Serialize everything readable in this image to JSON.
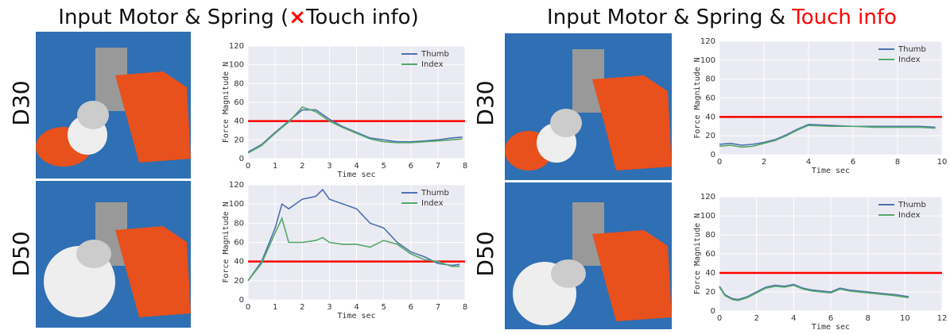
{
  "header": {
    "left_title": {
      "text": "Input Motor & Spring (",
      "mark": "×",
      "tail": "Touch info)"
    },
    "right_title": {
      "text": "Input Motor & Spring & ",
      "highlight": "Touch info"
    },
    "row_labels": [
      "D30",
      "D50",
      "D30",
      "D50"
    ]
  },
  "chart_data": [
    {
      "type": "line",
      "x_label": "Time sec",
      "y_label": "Force Magnitude N",
      "x": [
        0,
        0.5,
        1,
        1.5,
        2,
        2.5,
        3,
        3.5,
        4,
        4.5,
        5,
        5.5,
        6,
        6.5,
        7,
        7.5,
        7.9
      ],
      "series": [
        {
          "name": "Thumb",
          "color": "#4c72b0",
          "values": [
            7,
            15,
            28,
            40,
            52,
            52,
            42,
            34,
            28,
            22,
            20,
            18,
            18,
            19,
            20,
            22,
            23
          ]
        },
        {
          "name": "Index",
          "color": "#55a868",
          "values": [
            6,
            14,
            27,
            39,
            55,
            50,
            40,
            33,
            27,
            21,
            18,
            17,
            17,
            18,
            19,
            20,
            21
          ]
        }
      ],
      "threshold": {
        "value": 40,
        "color": "#ff0000"
      },
      "xlim": [
        0,
        8
      ],
      "xticks": [
        0,
        1,
        2,
        3,
        4,
        5,
        6,
        7,
        8
      ],
      "ylim": [
        0,
        120
      ],
      "yticks": [
        0,
        20,
        40,
        60,
        80,
        100,
        120
      ],
      "grid": true,
      "legend": "upper-right"
    },
    {
      "type": "line",
      "x_label": "Time sec",
      "y_label": "Force Magnitude N",
      "x": [
        0,
        0.5,
        1,
        1.25,
        1.5,
        2,
        2.5,
        2.75,
        3,
        3.5,
        4,
        4.5,
        5,
        5.5,
        6,
        6.5,
        7,
        7.5,
        7.8
      ],
      "series": [
        {
          "name": "Thumb",
          "color": "#4c72b0",
          "values": [
            20,
            40,
            75,
            100,
            95,
            105,
            108,
            115,
            105,
            100,
            95,
            80,
            75,
            60,
            50,
            45,
            38,
            36,
            37
          ]
        },
        {
          "name": "Index",
          "color": "#55a868",
          "values": [
            20,
            38,
            70,
            85,
            60,
            60,
            62,
            65,
            60,
            58,
            58,
            55,
            62,
            58,
            48,
            42,
            40,
            35,
            35
          ]
        }
      ],
      "threshold": {
        "value": 40,
        "color": "#ff0000"
      },
      "xlim": [
        0,
        8
      ],
      "xticks": [
        0,
        1,
        2,
        3,
        4,
        5,
        6,
        7,
        8
      ],
      "ylim": [
        0,
        120
      ],
      "yticks": [
        0,
        20,
        40,
        60,
        80,
        100,
        120
      ],
      "grid": true,
      "legend": "upper-right"
    },
    {
      "type": "line",
      "x_label": "Time sec",
      "y_label": "Force Magnitude N",
      "x": [
        0,
        0.5,
        1,
        1.5,
        2,
        2.5,
        3,
        3.5,
        4,
        5,
        6,
        7,
        8,
        9,
        9.7
      ],
      "series": [
        {
          "name": "Thumb",
          "color": "#4c72b0",
          "values": [
            11,
            12,
            10,
            11,
            13,
            16,
            21,
            27,
            32,
            31,
            30,
            30,
            30,
            30,
            29
          ]
        },
        {
          "name": "Index",
          "color": "#55a868",
          "values": [
            9,
            10,
            8,
            9,
            12,
            15,
            20,
            26,
            31,
            30,
            30,
            29,
            29,
            29,
            28
          ]
        }
      ],
      "threshold": {
        "value": 40,
        "color": "#ff0000"
      },
      "xlim": [
        0,
        10
      ],
      "xticks": [
        0,
        2,
        4,
        6,
        8,
        10
      ],
      "ylim": [
        0,
        120
      ],
      "yticks": [
        0,
        20,
        40,
        60,
        80,
        100,
        120
      ],
      "grid": true,
      "legend": "upper-right"
    },
    {
      "type": "line",
      "x_label": "Time sec",
      "y_label": "Force Magnitude N",
      "x": [
        0,
        0.3,
        0.7,
        1,
        1.5,
        2,
        2.5,
        3,
        3.5,
        4,
        4.5,
        5,
        6,
        6.5,
        7,
        8,
        9,
        9.5,
        10.2
      ],
      "series": [
        {
          "name": "Thumb",
          "color": "#4c72b0",
          "values": [
            26,
            17,
            13,
            12,
            15,
            20,
            25,
            27,
            26,
            28,
            24,
            22,
            20,
            24,
            22,
            20,
            18,
            17,
            15
          ]
        },
        {
          "name": "Index",
          "color": "#55a868",
          "values": [
            25,
            16,
            12,
            11,
            14,
            19,
            24,
            26,
            25,
            27,
            23,
            21,
            19,
            23,
            21,
            19,
            17,
            16,
            14
          ]
        }
      ],
      "threshold": {
        "value": 40,
        "color": "#ff0000"
      },
      "xlim": [
        0,
        12
      ],
      "xticks": [
        0,
        2,
        4,
        6,
        8,
        10,
        12
      ],
      "ylim": [
        0,
        120
      ],
      "yticks": [
        0,
        20,
        40,
        60,
        80,
        100,
        120
      ],
      "grid": true,
      "legend": "upper-right"
    }
  ]
}
